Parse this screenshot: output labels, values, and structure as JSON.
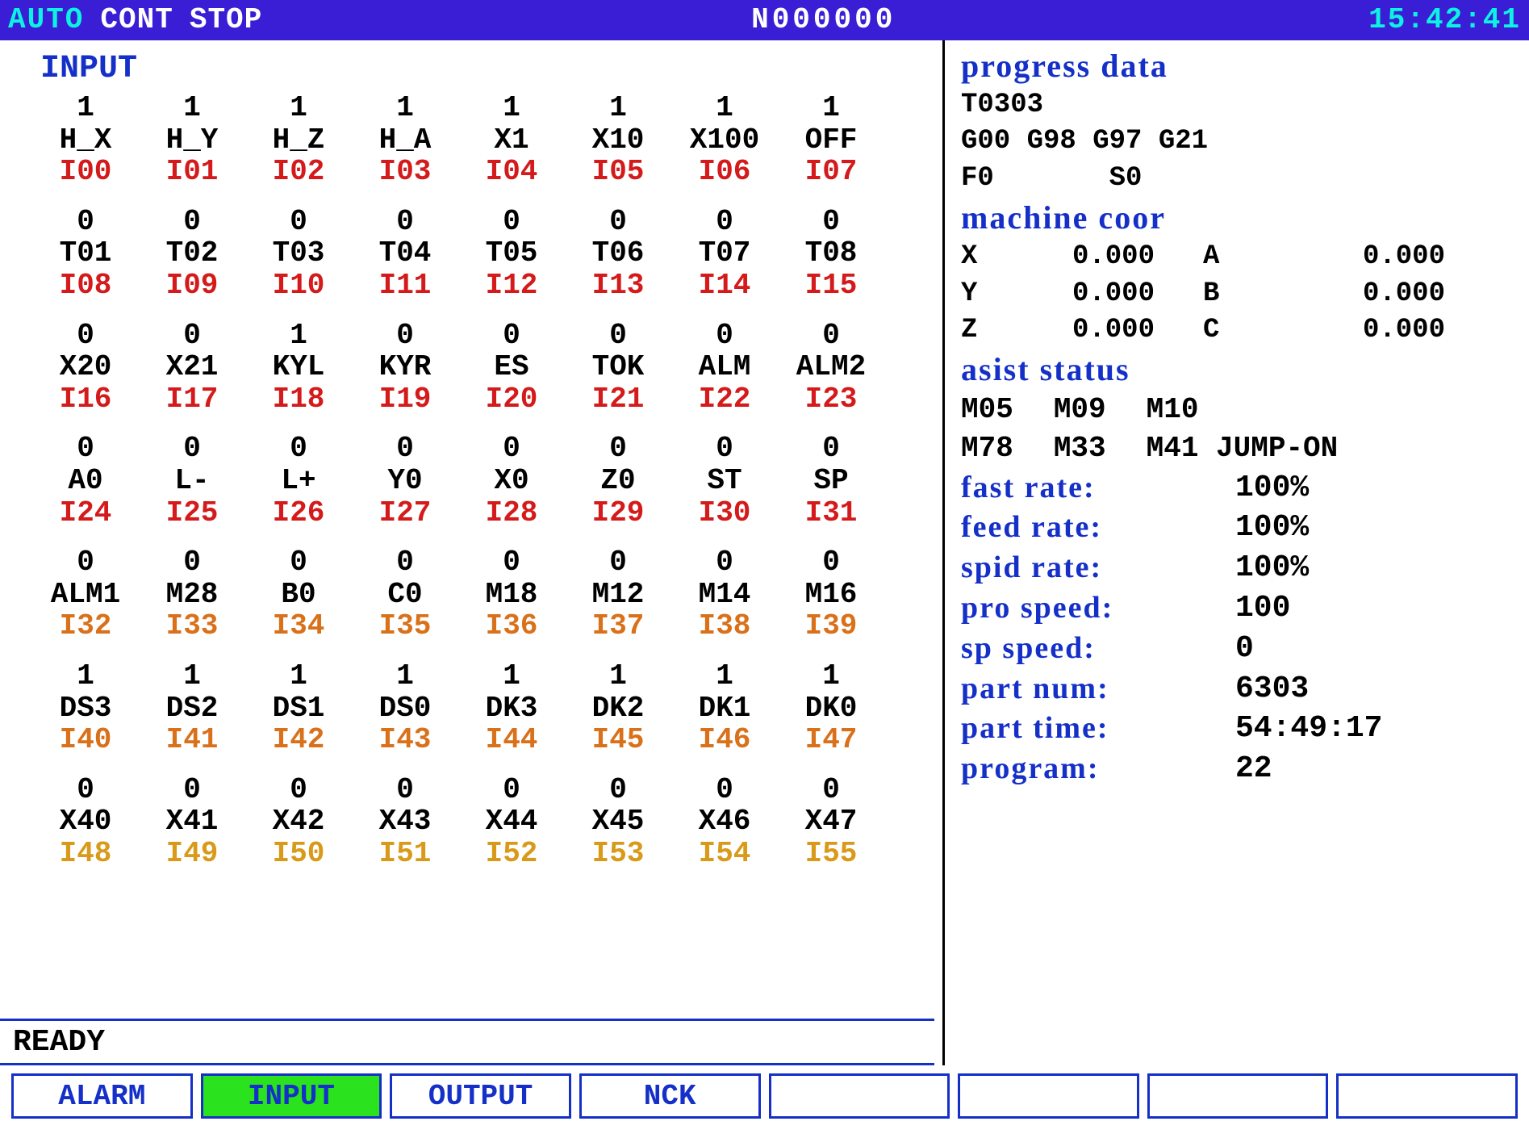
{
  "header": {
    "mode": "AUTO",
    "cont": "CONT",
    "stop": "STOP",
    "seq": "N000000",
    "clock": "15:42:41"
  },
  "input_section": {
    "title": "INPUT",
    "rows": [
      {
        "addr_class": "addr-red",
        "cells": [
          {
            "v": "1",
            "n": "H_X",
            "a": "I00"
          },
          {
            "v": "1",
            "n": "H_Y",
            "a": "I01"
          },
          {
            "v": "1",
            "n": "H_Z",
            "a": "I02"
          },
          {
            "v": "1",
            "n": "H_A",
            "a": "I03"
          },
          {
            "v": "1",
            "n": "X1",
            "a": "I04"
          },
          {
            "v": "1",
            "n": "X10",
            "a": "I05"
          },
          {
            "v": "1",
            "n": "X100",
            "a": "I06"
          },
          {
            "v": "1",
            "n": "OFF",
            "a": "I07"
          }
        ]
      },
      {
        "addr_class": "addr-red",
        "cells": [
          {
            "v": "0",
            "n": "T01",
            "a": "I08"
          },
          {
            "v": "0",
            "n": "T02",
            "a": "I09"
          },
          {
            "v": "0",
            "n": "T03",
            "a": "I10"
          },
          {
            "v": "0",
            "n": "T04",
            "a": "I11"
          },
          {
            "v": "0",
            "n": "T05",
            "a": "I12"
          },
          {
            "v": "0",
            "n": "T06",
            "a": "I13"
          },
          {
            "v": "0",
            "n": "T07",
            "a": "I14"
          },
          {
            "v": "0",
            "n": "T08",
            "a": "I15"
          }
        ]
      },
      {
        "addr_class": "addr-red",
        "cells": [
          {
            "v": "0",
            "n": "X20",
            "a": "I16"
          },
          {
            "v": "0",
            "n": "X21",
            "a": "I17"
          },
          {
            "v": "1",
            "n": "KYL",
            "a": "I18"
          },
          {
            "v": "0",
            "n": "KYR",
            "a": "I19"
          },
          {
            "v": "0",
            "n": "ES",
            "a": "I20"
          },
          {
            "v": "0",
            "n": "TOK",
            "a": "I21"
          },
          {
            "v": "0",
            "n": "ALM",
            "a": "I22"
          },
          {
            "v": "0",
            "n": "ALM2",
            "a": "I23"
          }
        ]
      },
      {
        "addr_class": "addr-red",
        "cells": [
          {
            "v": "0",
            "n": "A0",
            "a": "I24"
          },
          {
            "v": "0",
            "n": "L-",
            "a": "I25"
          },
          {
            "v": "0",
            "n": "L+",
            "a": "I26"
          },
          {
            "v": "0",
            "n": "Y0",
            "a": "I27"
          },
          {
            "v": "0",
            "n": "X0",
            "a": "I28"
          },
          {
            "v": "0",
            "n": "Z0",
            "a": "I29"
          },
          {
            "v": "0",
            "n": "ST",
            "a": "I30"
          },
          {
            "v": "0",
            "n": "SP",
            "a": "I31"
          }
        ]
      },
      {
        "addr_class": "addr-orange",
        "cells": [
          {
            "v": "0",
            "n": "ALM1",
            "a": "I32"
          },
          {
            "v": "0",
            "n": "M28",
            "a": "I33"
          },
          {
            "v": "0",
            "n": "B0",
            "a": "I34"
          },
          {
            "v": "0",
            "n": "C0",
            "a": "I35"
          },
          {
            "v": "0",
            "n": "M18",
            "a": "I36"
          },
          {
            "v": "0",
            "n": "M12",
            "a": "I37"
          },
          {
            "v": "0",
            "n": "M14",
            "a": "I38"
          },
          {
            "v": "0",
            "n": "M16",
            "a": "I39"
          }
        ]
      },
      {
        "addr_class": "addr-orange",
        "cells": [
          {
            "v": "1",
            "n": "DS3",
            "a": "I40"
          },
          {
            "v": "1",
            "n": "DS2",
            "a": "I41"
          },
          {
            "v": "1",
            "n": "DS1",
            "a": "I42"
          },
          {
            "v": "1",
            "n": "DS0",
            "a": "I43"
          },
          {
            "v": "1",
            "n": "DK3",
            "a": "I44"
          },
          {
            "v": "1",
            "n": "DK2",
            "a": "I45"
          },
          {
            "v": "1",
            "n": "DK1",
            "a": "I46"
          },
          {
            "v": "1",
            "n": "DK0",
            "a": "I47"
          }
        ]
      },
      {
        "addr_class": "addr-gold",
        "cells": [
          {
            "v": "0",
            "n": "X40",
            "a": "I48"
          },
          {
            "v": "0",
            "n": "X41",
            "a": "I49"
          },
          {
            "v": "0",
            "n": "X42",
            "a": "I50"
          },
          {
            "v": "0",
            "n": "X43",
            "a": "I51"
          },
          {
            "v": "0",
            "n": "X44",
            "a": "I52"
          },
          {
            "v": "0",
            "n": "X45",
            "a": "I53"
          },
          {
            "v": "0",
            "n": "X46",
            "a": "I54"
          },
          {
            "v": "0",
            "n": "X47",
            "a": "I55"
          }
        ]
      }
    ]
  },
  "status_bar": "READY",
  "progress": {
    "title": "progress data",
    "tool": "T0303",
    "gcodes": "G00  G98  G97  G21",
    "f": "F0",
    "s": "S0",
    "machine_title": "machine coor",
    "axes": [
      {
        "a1": "X",
        "v1": "0.000",
        "a2": "A",
        "v2": "0.000"
      },
      {
        "a1": "Y",
        "v1": "0.000",
        "a2": "B",
        "v2": "0.000"
      },
      {
        "a1": "Z",
        "v1": "0.000",
        "a2": "C",
        "v2": "0.000"
      }
    ],
    "asist_title": "asist status",
    "asist_row1": [
      "M05",
      "M09",
      "M10"
    ],
    "asist_row2": [
      "M78",
      "M33",
      "M41 JUMP-ON"
    ],
    "rates": [
      {
        "lbl": "fast rate:",
        "val": "100%"
      },
      {
        "lbl": "feed rate:",
        "val": "100%"
      },
      {
        "lbl": "spid rate:",
        "val": "100%"
      },
      {
        "lbl": "pro speed:",
        "val": "100"
      },
      {
        "lbl": "sp  speed:",
        "val": "0"
      },
      {
        "lbl": "part  num:",
        "val": "6303"
      },
      {
        "lbl": "part time:",
        "val": "54:49:17"
      },
      {
        "lbl": "program:",
        "val": "22"
      }
    ]
  },
  "softkeys": [
    {
      "label": "ALARM",
      "active": false
    },
    {
      "label": "INPUT",
      "active": true
    },
    {
      "label": "OUTPUT",
      "active": false
    },
    {
      "label": "NCK",
      "active": false
    },
    {
      "label": "",
      "active": false
    },
    {
      "label": "",
      "active": false
    },
    {
      "label": "",
      "active": false
    },
    {
      "label": "",
      "active": false
    }
  ]
}
